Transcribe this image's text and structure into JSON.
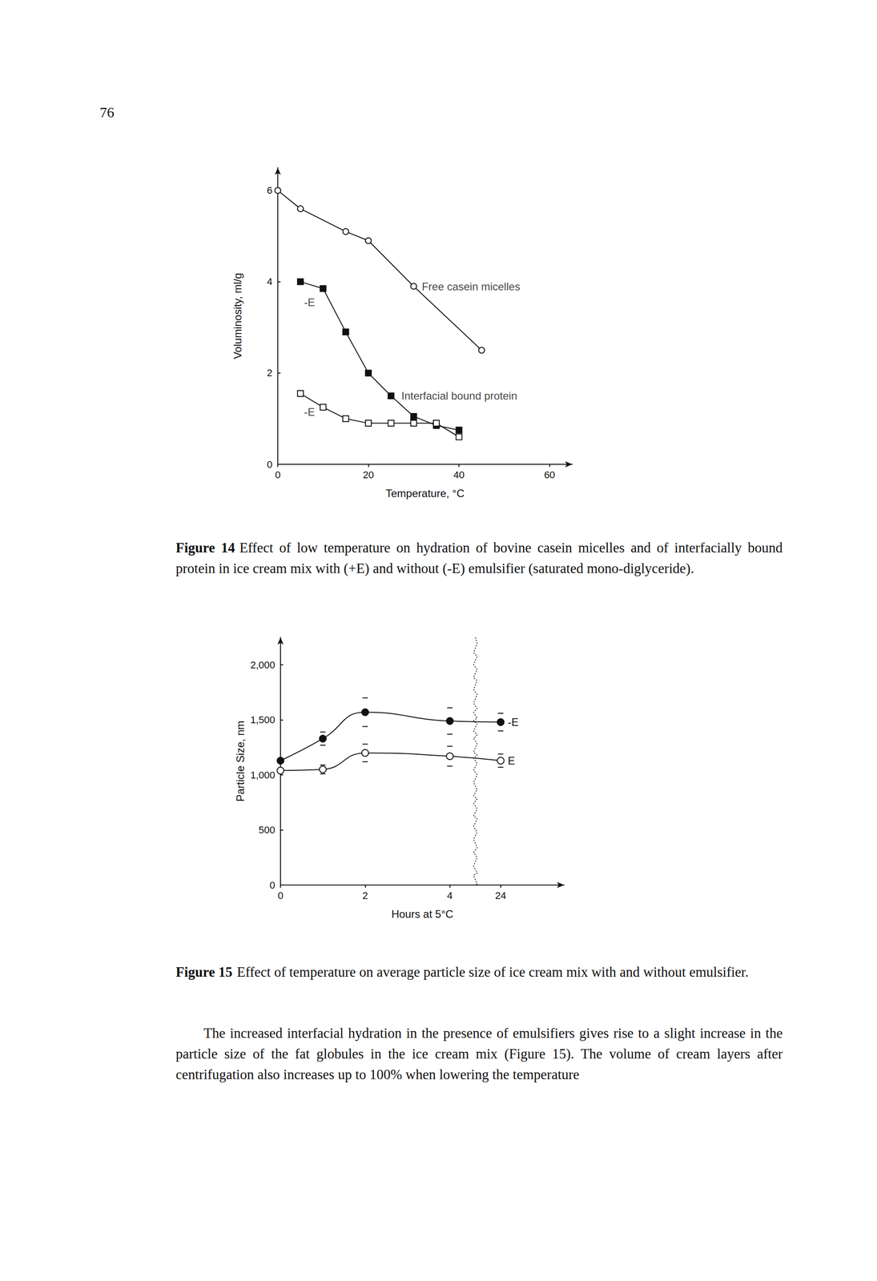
{
  "page_number": "76",
  "chart_data": [
    {
      "type": "line",
      "x_label": "Temperature, °C",
      "y_label": "Voluminosity, ml/g",
      "xlim": [
        0,
        65
      ],
      "xticks": [
        0,
        20,
        40,
        60
      ],
      "ylim": [
        0,
        6.5
      ],
      "yticks": [
        0,
        2,
        4,
        6
      ],
      "grid": false,
      "series": [
        {
          "marker": "open_circle",
          "color": "#111111",
          "x": [
            0,
            5,
            15,
            20,
            30,
            45
          ],
          "values": [
            6.0,
            5.6,
            5.1,
            4.9,
            3.9,
            2.5
          ]
        },
        {
          "marker": "filled_square",
          "color": "#111111",
          "x": [
            5,
            10,
            15,
            20,
            25,
            30,
            35,
            40
          ],
          "values": [
            4.0,
            3.85,
            2.9,
            2.0,
            1.5,
            1.05,
            0.85,
            0.75
          ]
        },
        {
          "marker": "open_square",
          "color": "#111111",
          "x": [
            5,
            10,
            15,
            20,
            25,
            30,
            35,
            40
          ],
          "values": [
            1.55,
            1.25,
            1.0,
            0.9,
            0.9,
            0.9,
            0.9,
            0.6
          ]
        }
      ],
      "annotations": [
        {
          "text": "Free casein micelles",
          "x": 31,
          "y": 3.9
        },
        {
          "text": "Interfacial bound protein",
          "x": 26.5,
          "y": 1.5
        },
        {
          "text": "-E",
          "x": 5,
          "y": 3.55
        },
        {
          "text": "-E",
          "x": 5,
          "y": 1.15
        }
      ]
    },
    {
      "type": "line",
      "x_label": "Hours at 5°C",
      "y_label": "Particle Size, nm",
      "xlim": [
        0,
        25.5
      ],
      "xticks": [
        0,
        2,
        4,
        24
      ],
      "xbreak": [
        4.6,
        23.4
      ],
      "ylim": [
        0,
        2250
      ],
      "yticks": [
        0,
        500,
        1000,
        1500,
        2000
      ],
      "grid": false,
      "x": [
        0,
        1,
        2,
        4,
        24
      ],
      "series": [
        {
          "name": "-E",
          "marker": "filled_circle",
          "color": "#111111",
          "values": [
            1130,
            1330,
            1570,
            1490,
            1480
          ],
          "errors": [
            null,
            60,
            130,
            120,
            80
          ]
        },
        {
          "name": "E",
          "marker": "open_circle",
          "color": "#111111",
          "values": [
            1040,
            1050,
            1200,
            1170,
            1130
          ],
          "errors": [
            null,
            40,
            80,
            90,
            60
          ]
        }
      ]
    }
  ],
  "captions": [
    {
      "label": "Figure 14",
      "text": "Effect of low temperature on hydration of bovine casein micelles and of interfacially bound protein in ice cream mix with (+E) and without (-E) emulsifier (saturated mono-diglyceride)."
    },
    {
      "label": "Figure 15",
      "text": "Effect of temperature on average particle size of ice cream mix with and without emulsifier."
    }
  ],
  "paragraph": "The increased interfacial hydration in the presence of emulsifiers gives rise to a slight increase in the particle size of the fat globules in the ice cream mix (Figure 15). The volume of cream layers after centrifugation also increases up to 100% when lowering the temperature"
}
